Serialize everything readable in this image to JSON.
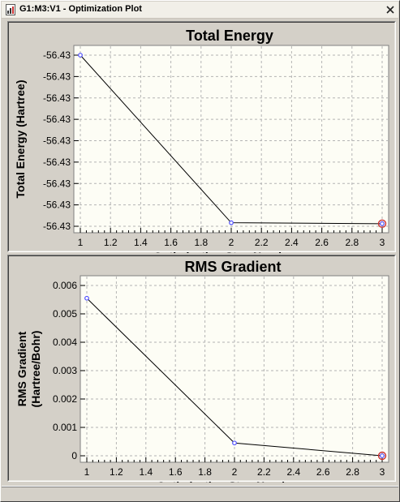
{
  "window": {
    "title": "G1:M3:V1 - Optimization Plot",
    "close_symbol": "×"
  },
  "colors": {
    "plot_background": "#fdfdf5",
    "line": "#000000",
    "point": "#4d4dff",
    "selected_point": "#cc3333",
    "grid": "#b4b4b4",
    "window": "#d4d0c8"
  },
  "chart_data": [
    {
      "type": "line",
      "title": "Total Energy",
      "xlabel": "Optimization Step Number",
      "ylabel": "Total Energy (Hartree)",
      "x": [
        1,
        2,
        3
      ],
      "y_relative_levels": [
        0.0,
        0.9,
        0.905
      ],
      "ytick_labels": [
        "-56.43",
        "-56.43",
        "-56.43",
        "-56.43",
        "-56.43",
        "-56.43",
        "-56.43",
        "-56.43",
        "-56.43"
      ],
      "xtick_labels": [
        "1",
        "1.2",
        "1.4",
        "1.6",
        "1.8",
        "2",
        "2.2",
        "2.4",
        "2.6",
        "2.8",
        "3"
      ],
      "xlim": [
        1,
        3
      ],
      "grid": true,
      "selected_point": 3
    },
    {
      "type": "line",
      "title": "RMS Gradient",
      "xlabel": "Optimization Step Number",
      "ylabel": [
        "RMS Gradient",
        "(Hartree/Bohr)"
      ],
      "x": [
        1,
        2,
        3
      ],
      "y": [
        0.00555,
        0.00045,
        0.0
      ],
      "ytick_values": [
        0,
        0.001,
        0.002,
        0.003,
        0.004,
        0.005,
        0.006
      ],
      "ytick_labels": [
        "0",
        "0.001",
        "0.002",
        "0.003",
        "0.004",
        "0.005",
        "0.006"
      ],
      "xtick_labels": [
        "1",
        "1.2",
        "1.4",
        "1.6",
        "1.8",
        "2",
        "2.2",
        "2.4",
        "2.6",
        "2.8",
        "3"
      ],
      "xlim": [
        1,
        3
      ],
      "ylim": [
        0,
        0.006
      ],
      "grid": true,
      "selected_point": 3
    }
  ]
}
